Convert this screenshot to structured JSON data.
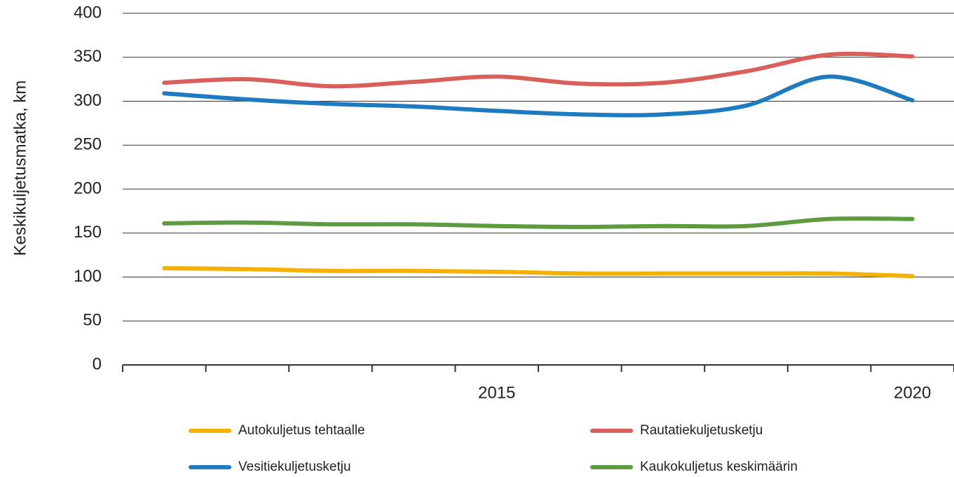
{
  "chart_data": {
    "type": "line",
    "y_label": "Keskikuljetusmatka, km",
    "categories": [
      null,
      null,
      null,
      null,
      "2015",
      null,
      null,
      null,
      null,
      "2020"
    ],
    "series": [
      {
        "name": "Autokuljetus tehtaalle",
        "color": "#f5b000",
        "values": [
          110,
          109,
          107,
          107,
          106,
          104,
          104,
          104,
          104,
          101
        ]
      },
      {
        "name": "Rautatiekuljetusketju",
        "color": "#d9605a",
        "values": [
          321,
          325,
          317,
          322,
          328,
          320,
          321,
          334,
          353,
          351
        ]
      },
      {
        "name": "Vesitiekuljetusketju",
        "color": "#1f7bbf",
        "values": [
          309,
          302,
          297,
          294,
          289,
          285,
          285,
          295,
          328,
          301
        ]
      },
      {
        "name": "Kaukokuljetus keskimäärin",
        "color": "#5e9a3f",
        "values": [
          161,
          162,
          160,
          160,
          158,
          157,
          158,
          158,
          166,
          166
        ]
      }
    ],
    "ylim": [
      0,
      400
    ],
    "yticks": [
      0,
      50,
      100,
      150,
      200,
      250,
      300,
      350,
      400
    ],
    "grid": true
  }
}
